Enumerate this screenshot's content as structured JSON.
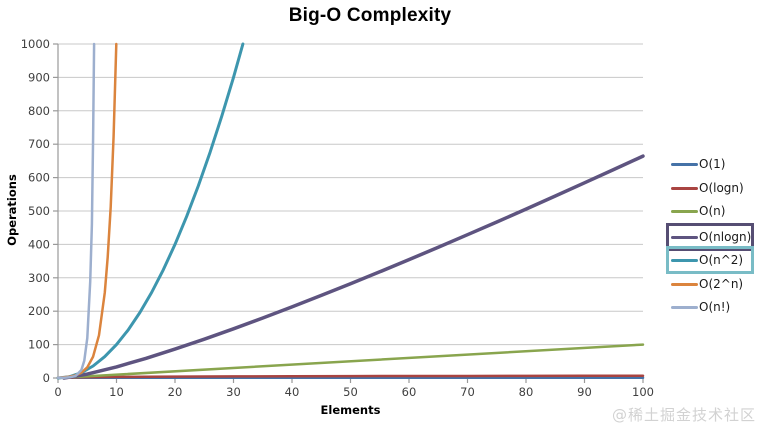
{
  "watermark": "@稀土掘金技术社区",
  "chart_data": {
    "type": "line",
    "title": "Big-O Complexity",
    "xlabel": "Elements",
    "ylabel": "Operations",
    "xlim": [
      0,
      100
    ],
    "ylim": [
      0,
      1000
    ],
    "x_ticks": [
      0,
      10,
      20,
      30,
      40,
      50,
      60,
      70,
      80,
      90,
      100
    ],
    "y_ticks": [
      0,
      100,
      200,
      300,
      400,
      500,
      600,
      700,
      800,
      900,
      1000
    ],
    "grid": "horizontal",
    "legend_position": "right",
    "colors": {
      "grid": "#c8c8c8",
      "axis": "#999999",
      "tick_label": "#404040",
      "title": "#000000",
      "watermark": "#d2d2d2"
    },
    "series": [
      {
        "name": "O(1)",
        "color": "#4572A7",
        "width": 2.5,
        "points": [
          [
            0,
            1
          ],
          [
            100,
            1
          ]
        ]
      },
      {
        "name": "O(logn)",
        "color": "#A94441",
        "width": 2.5,
        "points": [
          [
            1,
            0
          ],
          [
            2,
            1
          ],
          [
            3,
            1.58
          ],
          [
            4,
            2
          ],
          [
            6,
            2.58
          ],
          [
            8,
            3
          ],
          [
            10,
            3.32
          ],
          [
            15,
            3.91
          ],
          [
            20,
            4.32
          ],
          [
            30,
            4.91
          ],
          [
            40,
            5.32
          ],
          [
            50,
            5.64
          ],
          [
            60,
            5.91
          ],
          [
            70,
            6.13
          ],
          [
            80,
            6.32
          ],
          [
            90,
            6.49
          ],
          [
            100,
            6.64
          ]
        ]
      },
      {
        "name": "O(n)",
        "color": "#89A54E",
        "width": 2.5,
        "points": [
          [
            0,
            0
          ],
          [
            100,
            100
          ]
        ]
      },
      {
        "name": "O(nlogn)",
        "color": "#5E5480",
        "width": 3.5,
        "highlight": "#564E73",
        "points": [
          [
            1,
            0
          ],
          [
            5,
            11.6
          ],
          [
            10,
            33.2
          ],
          [
            15,
            58.6
          ],
          [
            20,
            86.4
          ],
          [
            25,
            116.1
          ],
          [
            30,
            147.2
          ],
          [
            35,
            179.5
          ],
          [
            40,
            212.9
          ],
          [
            45,
            247.2
          ],
          [
            50,
            282.2
          ],
          [
            55,
            318.0
          ],
          [
            60,
            354.4
          ],
          [
            65,
            391.4
          ],
          [
            70,
            429.0
          ],
          [
            75,
            467.1
          ],
          [
            80,
            505.8
          ],
          [
            85,
            544.8
          ],
          [
            90,
            584.3
          ],
          [
            95,
            624.2
          ],
          [
            100,
            664.4
          ]
        ]
      },
      {
        "name": "O(n^2)",
        "color": "#3D96AE",
        "width": 3,
        "highlight": "#79BCC6",
        "points": [
          [
            0,
            0
          ],
          [
            2,
            4
          ],
          [
            4,
            16
          ],
          [
            6,
            36
          ],
          [
            8,
            64
          ],
          [
            10,
            100
          ],
          [
            12,
            144
          ],
          [
            14,
            196
          ],
          [
            16,
            256
          ],
          [
            18,
            324
          ],
          [
            20,
            400
          ],
          [
            22,
            484
          ],
          [
            24,
            576
          ],
          [
            26,
            676
          ],
          [
            28,
            784
          ],
          [
            30,
            900
          ],
          [
            31.6,
            1000
          ]
        ]
      },
      {
        "name": "O(2^n)",
        "color": "#DB843D",
        "width": 2.5,
        "points": [
          [
            0,
            1
          ],
          [
            1,
            2
          ],
          [
            2,
            4
          ],
          [
            3,
            8
          ],
          [
            4,
            16
          ],
          [
            5,
            32
          ],
          [
            6,
            64
          ],
          [
            7,
            128
          ],
          [
            8,
            256
          ],
          [
            8.5,
            362
          ],
          [
            9,
            512
          ],
          [
            9.5,
            724
          ],
          [
            9.97,
            1000
          ]
        ]
      },
      {
        "name": "O(n!)",
        "color": "#9DAFCE",
        "width": 2.5,
        "points": [
          [
            0,
            1
          ],
          [
            1,
            1
          ],
          [
            2,
            2
          ],
          [
            3,
            6
          ],
          [
            4,
            24
          ],
          [
            4.5,
            52
          ],
          [
            5,
            120
          ],
          [
            5.5,
            288
          ],
          [
            5.8,
            460
          ],
          [
            6,
            720
          ],
          [
            6.17,
            1000
          ]
        ]
      }
    ]
  }
}
